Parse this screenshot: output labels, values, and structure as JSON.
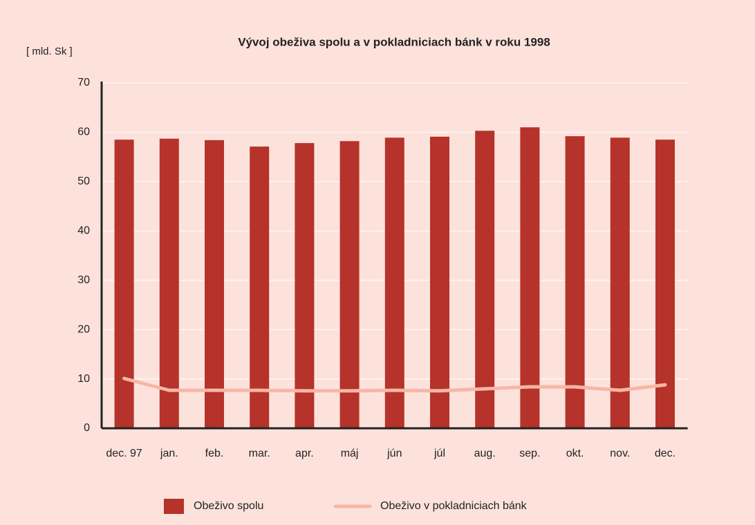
{
  "chart_data": {
    "type": "bar",
    "title": "Vývoj obeživa spolu a v pokladniciach bánk v roku 1998",
    "y_label": "[ mld. Sk ]",
    "categories": [
      "dec. 97",
      "jan.",
      "feb.",
      "mar.",
      "apr.",
      "máj",
      "jún",
      "júl",
      "aug.",
      "sep.",
      "okt.",
      "nov.",
      "dec."
    ],
    "series": [
      {
        "name": "Obeživo spolu",
        "type": "bar",
        "color": "#b5332a",
        "values": [
          58.5,
          58.7,
          58.4,
          57.1,
          57.8,
          58.2,
          58.9,
          59.1,
          60.3,
          61.0,
          59.2,
          58.9,
          58.5
        ]
      },
      {
        "name": "Obeživo v pokladniciach bánk",
        "type": "line",
        "color": "#f8b6a6",
        "values": [
          10.1,
          7.7,
          7.7,
          7.7,
          7.6,
          7.6,
          7.7,
          7.6,
          8.0,
          8.4,
          8.4,
          7.7,
          8.8
        ]
      }
    ],
    "ylim": [
      0,
      70
    ],
    "yticks": [
      0,
      10,
      20,
      30,
      40,
      50,
      60,
      70
    ],
    "grid": true,
    "legend": "bottom"
  }
}
